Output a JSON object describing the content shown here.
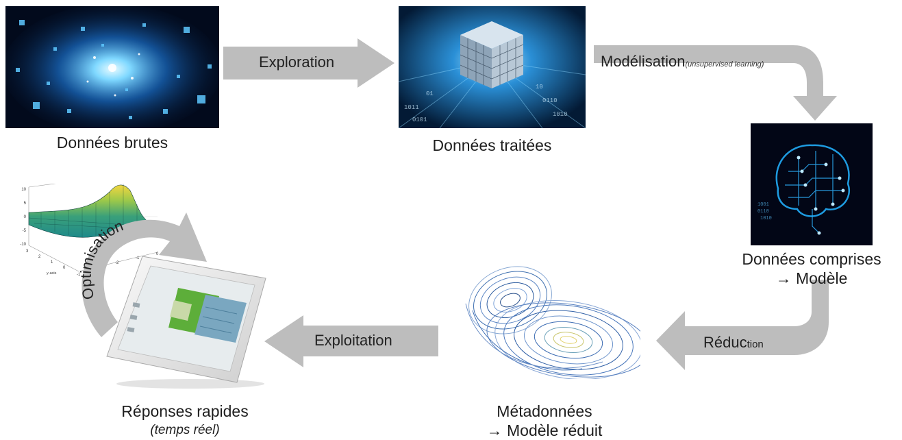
{
  "nodes": {
    "raw_data": {
      "caption": "Données brutes"
    },
    "processed_data": {
      "caption": "Données traitées"
    },
    "understood_data": {
      "caption_line1": "Données comprises",
      "caption_line2": "→ Modèle"
    },
    "metadata": {
      "caption_line1": "Métadonnées",
      "caption_line2": "→ Modèle réduit"
    },
    "fast_answers": {
      "caption_line1": "Réponses rapides",
      "caption_line2": "(temps réel)"
    }
  },
  "arrows": {
    "exploration": {
      "label": "Exploration"
    },
    "modelisation": {
      "label": "Modélisation",
      "note": "(unsupervised learning)"
    },
    "reduction": {
      "label_main": "Réduc",
      "label_small": "tion"
    },
    "exploitation": {
      "label": "Exploitation"
    },
    "optimisation": {
      "label": "Optimisation"
    }
  },
  "plot_axis": {
    "z_ticks": [
      "10",
      "5",
      "0",
      "-5",
      "-10"
    ],
    "y_ticks": [
      "3",
      "2",
      "1",
      "0",
      "-1"
    ],
    "x_ticks": [
      "0",
      "-1",
      "-2"
    ],
    "y_label": "y-axis"
  },
  "colors": {
    "arrow": "#bdbdbd",
    "accent_blue": "#1e9be0",
    "dark_navy": "#03122b"
  },
  "icons": [
    "data-particles-image",
    "data-cube-image",
    "circuit-brain-image",
    "lorenz-attractor-image",
    "surface-plot-image",
    "tablet-image"
  ]
}
